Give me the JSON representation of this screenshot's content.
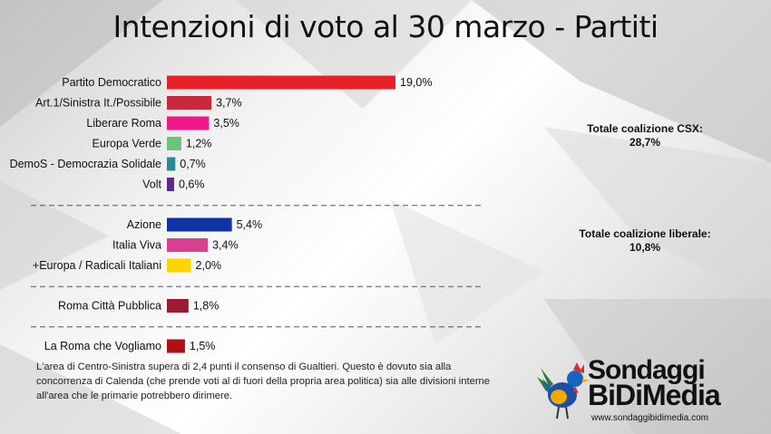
{
  "title": "Intenzioni di voto al 30 marzo - Partiti",
  "chart_data": {
    "type": "bar",
    "orientation": "horizontal",
    "title": "Intenzioni di voto al 30 marzo - Partiti",
    "xlim": [
      0,
      19
    ],
    "groups": [
      {
        "name": "Totale coalizione CSX: 28,7%",
        "bars": [
          {
            "label": "Partito Democratico",
            "value": 19.0,
            "display": "19,0%",
            "color": "#e8202a"
          },
          {
            "label": "Art.1/Sinistra It./Possibile",
            "value": 3.7,
            "display": "3,7%",
            "color": "#c8283a"
          },
          {
            "label": "Liberare Roma",
            "value": 3.5,
            "display": "3,5%",
            "color": "#f0178a"
          },
          {
            "label": "Europa Verde",
            "value": 1.2,
            "display": "1,2%",
            "color": "#6cc47a"
          },
          {
            "label": "DemoS - Democrazia Solidale",
            "value": 0.7,
            "display": "0,7%",
            "color": "#2b8a96"
          },
          {
            "label": "Volt",
            "value": 0.6,
            "display": "0,6%",
            "color": "#5b2a86"
          }
        ]
      },
      {
        "name": "Totale coalizione liberale: 10,8%",
        "bars": [
          {
            "label": "Azione",
            "value": 5.4,
            "display": "5,4%",
            "color": "#1034a6"
          },
          {
            "label": "Italia Viva",
            "value": 3.4,
            "display": "3,4%",
            "color": "#d6408e"
          },
          {
            "label": "+Europa / Radicali Italiani",
            "value": 2.0,
            "display": "2,0%",
            "color": "#ffd400"
          }
        ]
      },
      {
        "name": "",
        "bars": [
          {
            "label": "Roma Città Pubblica",
            "value": 1.8,
            "display": "1,8%",
            "color": "#9b1b33"
          }
        ]
      },
      {
        "name": "",
        "bars": [
          {
            "label": "La Roma che Vogliamo",
            "value": 1.5,
            "display": "1,5%",
            "color": "#b01010"
          }
        ]
      }
    ]
  },
  "totals": {
    "csx_label": "Totale coalizione CSX:",
    "csx_value": "28,7%",
    "lib_label": "Totale coalizione liberale:",
    "lib_value": "10,8%"
  },
  "note": "L'area di Centro-Sinistra supera di 2,4 punti il consenso di Gualtieri. Questo è dovuto sia alla concorrenza di Calenda (che prende voti al di fuori della propria area politica) sia alle divisioni interne all'area che le primarie potrebbero dirimere.",
  "logo": {
    "line1": "Sondaggi",
    "line2": "BiDiMedia",
    "url": "www.sondaggibidimedia.com"
  }
}
